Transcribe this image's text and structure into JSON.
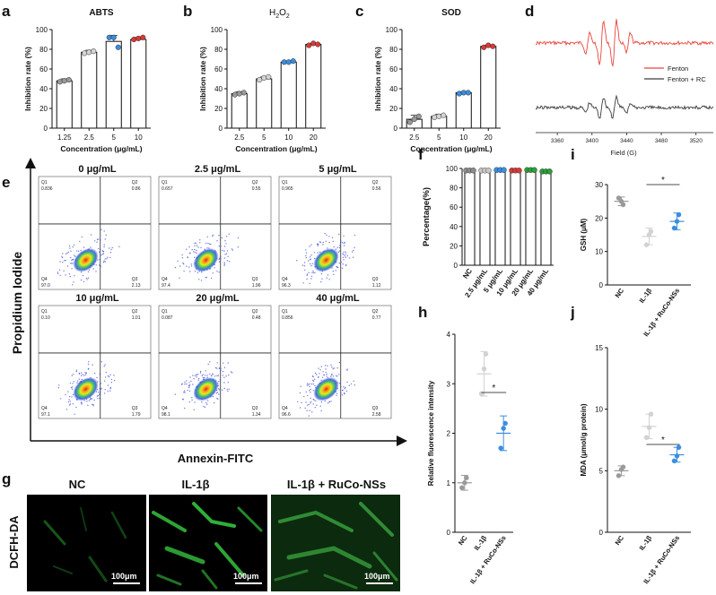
{
  "panels": {
    "a": "a",
    "b": "b",
    "c": "c",
    "d": "d",
    "e": "e",
    "f": "f",
    "g": "g",
    "h": "h",
    "i": "i",
    "j": "j"
  },
  "colors": {
    "gray": "#a0a0a0",
    "light_gray": "#d2d2d2",
    "blue": "#3a8ee0",
    "red": "#d83a36",
    "green": "#2e9e3a",
    "fenton": "#e8453c",
    "fenton_rc": "#3c3c3c"
  },
  "chart_data": [
    {
      "panel": "a",
      "type": "bar",
      "title": "ABTS",
      "categories": [
        "1.25",
        "2.5",
        "5",
        "10"
      ],
      "values": [
        48,
        77,
        88,
        90
      ],
      "errors": [
        2,
        2,
        6,
        2
      ],
      "points": [
        [
          47,
          48,
          49
        ],
        [
          76,
          77,
          78
        ],
        [
          92,
          92,
          82
        ],
        [
          90,
          91,
          92
        ]
      ],
      "point_colors": [
        "#9a9a9a",
        "#d4d4d4",
        "#3a8ee0",
        "#d83a36"
      ],
      "xlabel": "Concentration (μg/mL)",
      "ylabel": "Inhibition rate (%)",
      "ylim": [
        0,
        100
      ],
      "yticks": [
        "0",
        "20",
        "40",
        "60",
        "80",
        "100"
      ]
    },
    {
      "panel": "b",
      "type": "bar",
      "title": "H",
      "title_sub": "2",
      "title_mid": "O",
      "title_sub2": "2",
      "categories": [
        "2.5",
        "5",
        "10",
        "20"
      ],
      "values": [
        35,
        50,
        67,
        85
      ],
      "errors": [
        2,
        2,
        1,
        1
      ],
      "points": [
        [
          34,
          35,
          36
        ],
        [
          49,
          51,
          52
        ],
        [
          67,
          67,
          68
        ],
        [
          84,
          86,
          85
        ]
      ],
      "point_colors": [
        "#9a9a9a",
        "#d4d4d4",
        "#3a8ee0",
        "#d83a36"
      ],
      "xlabel": "Concentration (μg/mL)",
      "ylabel": "Inhibition rate (%)",
      "ylim": [
        0,
        100
      ],
      "yticks": [
        "0",
        "20",
        "40",
        "60",
        "80",
        "100"
      ]
    },
    {
      "panel": "c",
      "type": "bar",
      "title": "SOD",
      "categories": [
        "2.5",
        "5",
        "10",
        "20"
      ],
      "values": [
        9,
        12,
        36,
        83
      ],
      "errors": [
        4,
        2,
        1,
        1
      ],
      "points": [
        [
          6,
          9,
          12
        ],
        [
          11,
          12,
          13
        ],
        [
          35,
          36,
          36
        ],
        [
          82,
          84,
          83
        ]
      ],
      "point_colors": [
        "#9a9a9a",
        "#d4d4d4",
        "#3a8ee0",
        "#d83a36"
      ],
      "xlabel": "Concentration (μg/mL)",
      "ylabel": "Inhibition rate (%)",
      "ylim": [
        0,
        100
      ],
      "yticks": [
        "0",
        "20",
        "40",
        "60",
        "80",
        "100"
      ]
    },
    {
      "panel": "d",
      "type": "line",
      "title": "",
      "xlabel": "Field (G)",
      "xticks": [
        "3360",
        "3400",
        "3440",
        "3480",
        "3520"
      ],
      "xlim": [
        3335,
        3540
      ],
      "series": [
        {
          "name": "Fenton",
          "color": "#e8453c"
        },
        {
          "name": "Fenton + RC",
          "color": "#3c3c3c"
        }
      ]
    },
    {
      "panel": "f",
      "type": "bar",
      "title": "",
      "categories": [
        "NC",
        "2.5 μg/mL",
        "5 μg/mL",
        "10 μg/mL",
        "20 μg/mL",
        "40 μg/mL"
      ],
      "values": [
        97,
        97,
        97.5,
        97,
        97.5,
        96
      ],
      "point_colors": [
        "#8c8c8c",
        "#c8c8c8",
        "#3a8ee0",
        "#d83a36",
        "#2e9e3a",
        "#2e9e3a"
      ],
      "ylabel": "Percentage(%)",
      "ylim": [
        0,
        100
      ],
      "yticks": [
        "0",
        "20",
        "40",
        "60",
        "80",
        "100"
      ]
    },
    {
      "panel": "h",
      "type": "scatter",
      "title": "",
      "categories": [
        "NC",
        "IL-1β",
        "IL-1β + RuCo-NSs"
      ],
      "means": [
        1.0,
        3.2,
        2.0
      ],
      "sd": [
        0.15,
        0.45,
        0.35
      ],
      "points": [
        [
          0.9,
          1.1,
          1.0
        ],
        [
          2.8,
          3.6,
          3.3
        ],
        [
          1.7,
          2.2,
          2.1
        ]
      ],
      "colors": [
        "#9a9a9a",
        "#d2d2d2",
        "#3a8ee0"
      ],
      "ylabel": "Relative fluorescence intensity",
      "ylim": [
        0,
        4
      ],
      "yticks": [
        "0",
        "1",
        "2",
        "3",
        "4"
      ],
      "significance": "*"
    },
    {
      "panel": "i",
      "type": "scatter",
      "title": "",
      "categories": [
        "NC",
        "IL-1β",
        "IL-1β + RuCo-NSs"
      ],
      "means": [
        25,
        14.5,
        19
      ],
      "sd": [
        1.3,
        2.5,
        2.5
      ],
      "points": [
        [
          26,
          24,
          25
        ],
        [
          12,
          16,
          15
        ],
        [
          17,
          21,
          19
        ]
      ],
      "colors": [
        "#9a9a9a",
        "#d2d2d2",
        "#3a8ee0"
      ],
      "ylabel": "GSH (μM)",
      "ylim": [
        0,
        30
      ],
      "yticks": [
        "0",
        "10",
        "20",
        "30"
      ],
      "significance": "*"
    },
    {
      "panel": "j",
      "type": "scatter",
      "title": "",
      "categories": [
        "NC",
        "IL-1β",
        "IL-1β + RuCo-NSs"
      ],
      "means": [
        5.0,
        8.6,
        6.3
      ],
      "sd": [
        0.4,
        1.0,
        0.6
      ],
      "points": [
        [
          4.6,
          5.3,
          5.1
        ],
        [
          7.7,
          9.6,
          8.5
        ],
        [
          5.8,
          6.9,
          6.2
        ]
      ],
      "colors": [
        "#9a9a9a",
        "#d2d2d2",
        "#3a8ee0"
      ],
      "ylabel": "MDA (μmol/g protein)",
      "ylim": [
        0,
        15
      ],
      "yticks": [
        "0",
        "5",
        "10",
        "15"
      ],
      "significance": "*"
    }
  ],
  "flow": {
    "ylabel": "Propidium Iodide",
    "xlabel": "Annexin-FITC",
    "plots": [
      {
        "title": "0 μg/mL",
        "q1": "Q1",
        "q2": "Q2",
        "q3": "Q3",
        "q4": "Q4",
        "v1": "0.836",
        "v2": "0.86",
        "v3": "2.13",
        "v4": "97.0"
      },
      {
        "title": "2.5 μg/mL",
        "q1": "Q1",
        "q2": "Q2",
        "q3": "Q3",
        "q4": "Q4",
        "v1": "0.657",
        "v2": "0.55",
        "v3": "1.96",
        "v4": "97.4"
      },
      {
        "title": "5 μg/mL",
        "q1": "Q1",
        "q2": "Q2",
        "q3": "Q3",
        "q4": "Q4",
        "v1": "0.965",
        "v2": "0.56",
        "v3": "1.12",
        "v4": "96.3"
      },
      {
        "title": "10 μg/mL",
        "q1": "Q1",
        "q2": "Q2",
        "q3": "Q3",
        "q4": "Q4",
        "v1": "0.10",
        "v2": "1.01",
        "v3": "1.79",
        "v4": "97.1"
      },
      {
        "title": "20 μg/mL",
        "q1": "Q1",
        "q2": "Q2",
        "q3": "Q3",
        "q4": "Q4",
        "v1": "0.087",
        "v2": "0.48",
        "v3": "1.34",
        "v4": "98.1"
      },
      {
        "title": "40 μg/mL",
        "q1": "Q1",
        "q2": "Q2",
        "q3": "Q3",
        "q4": "Q4",
        "v1": "0.856",
        "v2": "0.77",
        "v3": "2.58",
        "v4": "96.6"
      }
    ]
  },
  "fluorescence": {
    "row_label": "DCFH-DA",
    "columns": [
      "NC",
      "IL-1β",
      "IL-1β + RuCo-NSs"
    ],
    "scale_bar": "100μm"
  }
}
